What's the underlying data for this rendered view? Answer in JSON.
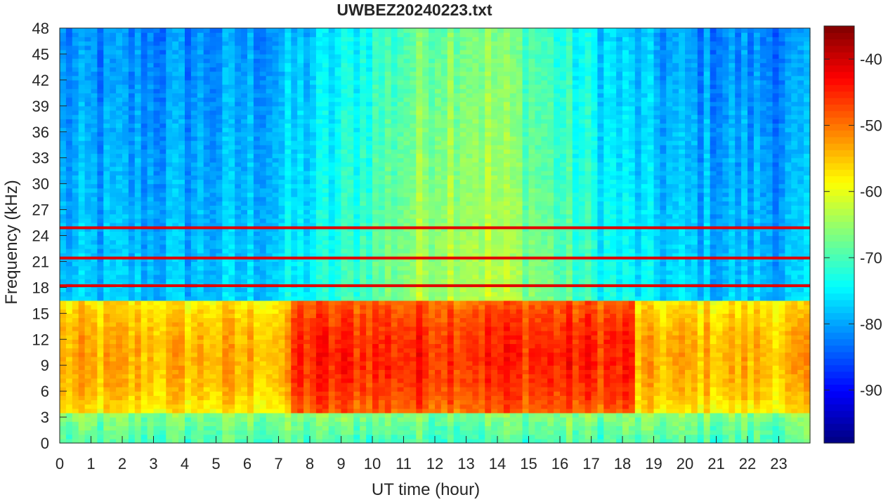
{
  "chart_data": {
    "type": "heatmap",
    "title": "UWBEZ20240223.txt",
    "xlabel": "UT time (hour)",
    "ylabel": "Frequency (kHz)",
    "xlim": [
      0,
      24
    ],
    "ylim": [
      0,
      48
    ],
    "x_ticks": [
      "0",
      "1",
      "2",
      "3",
      "4",
      "5",
      "6",
      "7",
      "8",
      "9",
      "10",
      "11",
      "12",
      "13",
      "14",
      "15",
      "16",
      "17",
      "18",
      "19",
      "20",
      "21",
      "22",
      "23"
    ],
    "y_ticks": [
      "0",
      "3",
      "6",
      "9",
      "12",
      "15",
      "18",
      "21",
      "24",
      "27",
      "30",
      "33",
      "36",
      "39",
      "42",
      "45",
      "48"
    ],
    "colorbar": {
      "range": [
        -98,
        -35
      ],
      "ticks": [
        "-90",
        "-80",
        "-70",
        "-60",
        "-50",
        "-40"
      ],
      "colormap": "jet"
    },
    "grid": false,
    "features": {
      "strong_lines_khz": [
        18.2,
        21.4,
        24.9
      ],
      "intense_band_khz": [
        3.5,
        16.5
      ],
      "intense_band_hours": [
        7.3,
        18.3
      ],
      "peak_level": -45,
      "low_band_level": -70,
      "high_freq_level_day": -66,
      "high_freq_level_night": -82
    }
  }
}
